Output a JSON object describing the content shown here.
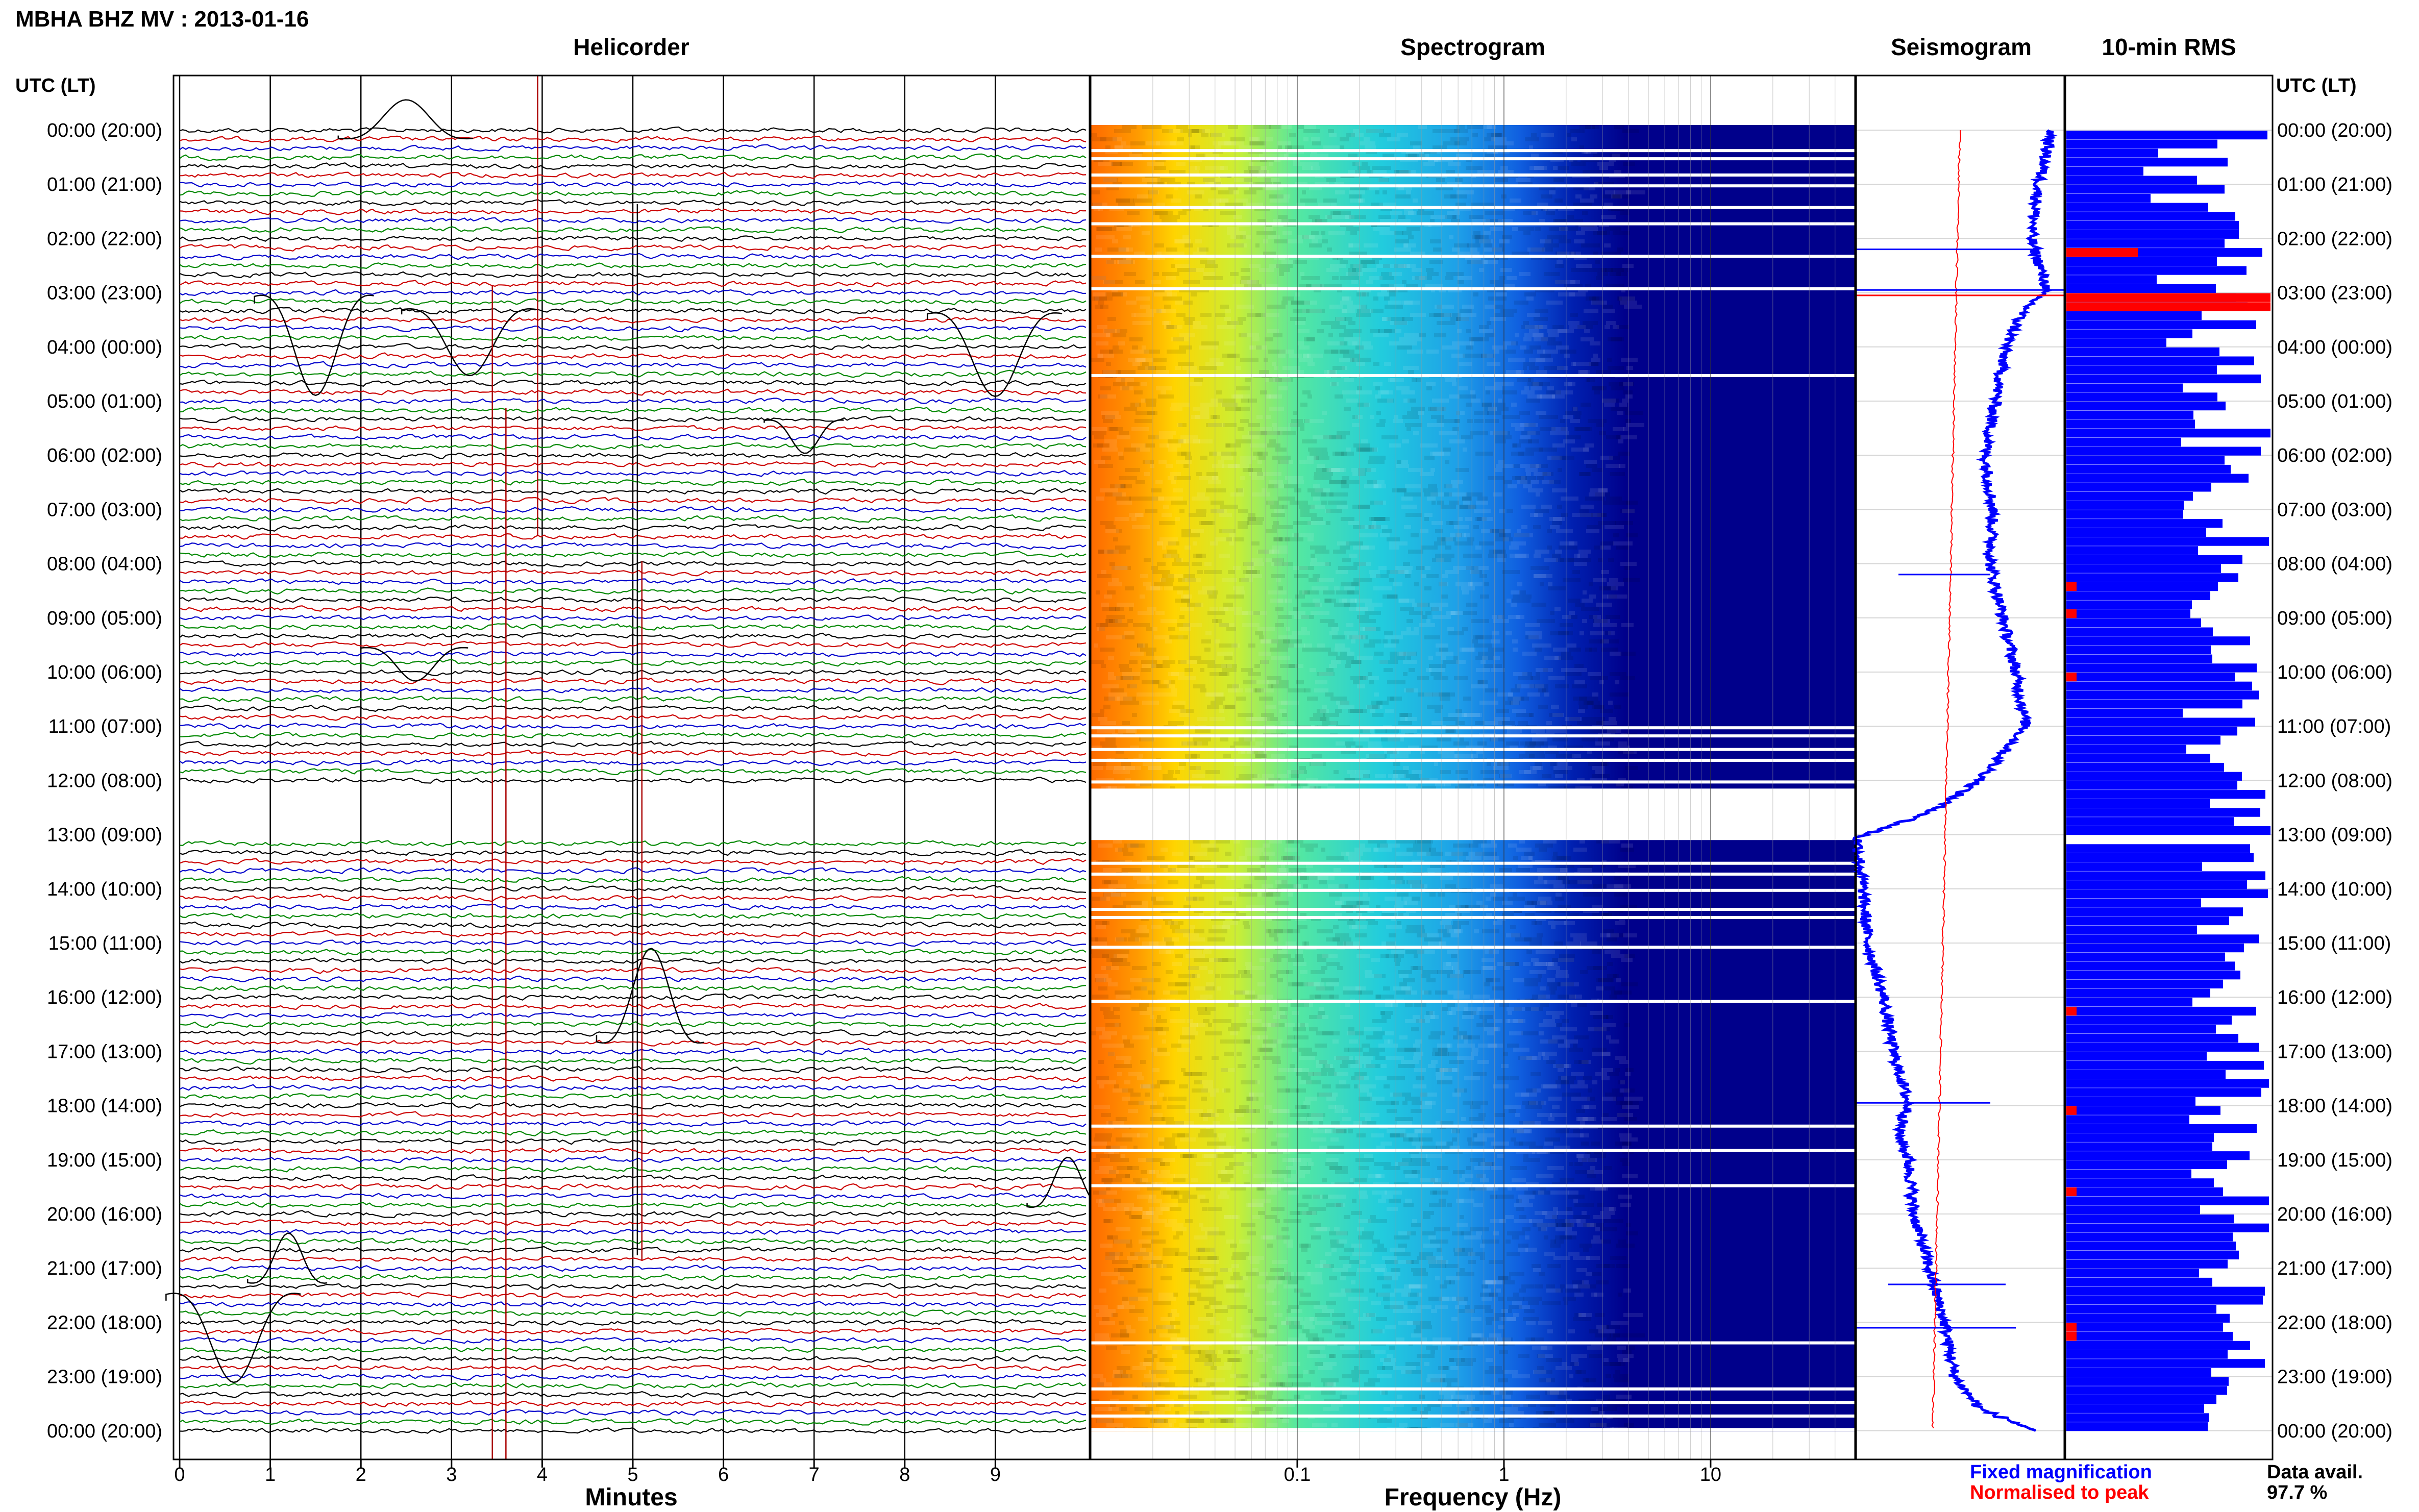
{
  "title": "MBHA BHZ MV : 2013-01-16",
  "colors": {
    "trace_cycle": [
      "#000000",
      "#cc0000",
      "#0000cc",
      "#008800"
    ],
    "fixed": "#0000ff",
    "normalised": "#ff0000",
    "spectro_bg": "#00008b"
  },
  "chart_data": [
    {
      "type": "line",
      "title": "Helicorder",
      "row_label_header": "UTC (LT)",
      "right_label_header": "UTC (LT)",
      "row_labels": [
        "00:00 (20:00)",
        "01:00 (21:00)",
        "02:00 (22:00)",
        "03:00 (23:00)",
        "04:00 (00:00)",
        "05:00 (01:00)",
        "06:00 (02:00)",
        "07:00 (03:00)",
        "08:00 (04:00)",
        "09:00 (05:00)",
        "10:00 (06:00)",
        "11:00 (07:00)",
        "12:00 (08:00)",
        "13:00 (09:00)",
        "14:00 (10:00)",
        "15:00 (11:00)",
        "16:00 (12:00)",
        "17:00 (13:00)",
        "18:00 (14:00)",
        "19:00 (15:00)",
        "20:00 (16:00)",
        "21:00 (17:00)",
        "22:00 (18:00)",
        "23:00 (19:00)",
        "00:00 (20:00)"
      ],
      "xlabel": "Minutes",
      "xticks": [
        "0",
        "1",
        "2",
        "3",
        "4",
        "5",
        "6",
        "7",
        "8",
        "9"
      ],
      "xlim": [
        0,
        10
      ],
      "traces_per_hour": 6,
      "grid": true
    },
    {
      "type": "heatmap",
      "title": "Spectrogram",
      "xlabel": "Frequency (Hz)",
      "xscale": "log",
      "xlim": [
        0.01,
        50
      ],
      "xticks": [
        "0.1",
        "1",
        "10"
      ],
      "gap_hours": [
        [
          12.15,
          13.1
        ]
      ],
      "white_line_hours": [
        0.35,
        0.5,
        0.8,
        1.0,
        1.4,
        1.7,
        2.3,
        2.9,
        4.5,
        11.0,
        11.15,
        11.4,
        11.6,
        12.0,
        13.5,
        13.7,
        14.0,
        14.35,
        14.5,
        15.05,
        16.05,
        18.35,
        18.8,
        19.45,
        22.35,
        23.2,
        23.45,
        23.7,
        23.95
      ]
    },
    {
      "type": "line",
      "title": "Seismogram",
      "series": [
        {
          "name": "Fixed magnification",
          "color": "#0000ff"
        },
        {
          "name": "Normalised to peak",
          "color": "#ff0000"
        }
      ]
    },
    {
      "type": "bar",
      "title": "10-min RMS",
      "orientation": "horizontal",
      "highlight_hours": [
        2.2,
        2.95,
        3.1,
        8.3,
        8.9,
        10.05,
        16.2,
        18.0,
        19.5,
        22.0,
        22.2
      ]
    }
  ],
  "legend": {
    "fixed": "Fixed magnification",
    "normalised": "Normalised to peak"
  },
  "availability": {
    "label": "Data avail.",
    "value": "97.7 %"
  }
}
